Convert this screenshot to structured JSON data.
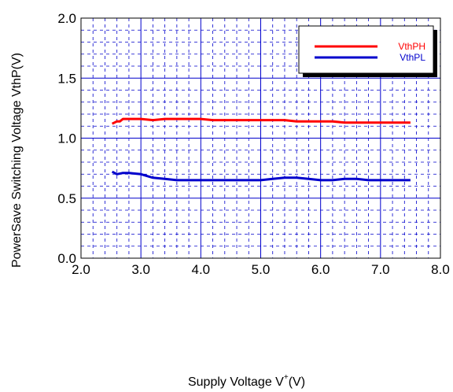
{
  "chart_data": {
    "type": "line",
    "xlabel_prefix": "Supply Voltage  V",
    "xlabel_sup": "+",
    "xlabel_suffix": "(V)",
    "ylabel": "PowerSave Switching Voltage   VthP(V)",
    "xlim": [
      2.0,
      8.0
    ],
    "ylim": [
      0.0,
      2.0
    ],
    "x_ticks": [
      "2.0",
      "3.0",
      "4.0",
      "5.0",
      "6.0",
      "7.0",
      "8.0"
    ],
    "y_ticks": [
      "0.0",
      "0.5",
      "1.0",
      "1.5",
      "2.0"
    ],
    "x_tick_values": [
      2.0,
      3.0,
      4.0,
      5.0,
      6.0,
      7.0,
      8.0
    ],
    "y_tick_values": [
      0.0,
      0.5,
      1.0,
      1.5,
      2.0
    ],
    "x_minor_step": 0.2,
    "y_minor_step": 0.1,
    "grid": true,
    "legend_position": "top-right",
    "series": [
      {
        "name": "VthPH",
        "color": "#ff0000",
        "x": [
          2.52,
          2.56,
          2.6,
          2.65,
          2.7,
          2.8,
          3.0,
          3.2,
          3.4,
          3.6,
          3.8,
          4.0,
          4.2,
          4.4,
          4.6,
          4.8,
          5.0,
          5.2,
          5.4,
          5.6,
          5.8,
          6.0,
          6.2,
          6.4,
          6.6,
          6.8,
          7.0,
          7.2,
          7.5
        ],
        "y": [
          1.12,
          1.13,
          1.14,
          1.14,
          1.16,
          1.16,
          1.16,
          1.15,
          1.16,
          1.16,
          1.16,
          1.16,
          1.15,
          1.15,
          1.15,
          1.15,
          1.15,
          1.15,
          1.15,
          1.14,
          1.14,
          1.14,
          1.14,
          1.13,
          1.13,
          1.13,
          1.13,
          1.13,
          1.13
        ]
      },
      {
        "name": "VthPL",
        "color": "#0000cc",
        "x": [
          2.52,
          2.56,
          2.6,
          2.7,
          2.8,
          3.0,
          3.2,
          3.4,
          3.6,
          3.8,
          4.0,
          4.2,
          4.4,
          4.6,
          4.8,
          5.0,
          5.2,
          5.4,
          5.6,
          5.8,
          6.0,
          6.2,
          6.4,
          6.6,
          6.8,
          7.0,
          7.2,
          7.5
        ],
        "y": [
          0.72,
          0.71,
          0.7,
          0.71,
          0.71,
          0.7,
          0.67,
          0.66,
          0.65,
          0.65,
          0.65,
          0.65,
          0.65,
          0.65,
          0.65,
          0.65,
          0.66,
          0.67,
          0.67,
          0.66,
          0.65,
          0.65,
          0.66,
          0.66,
          0.65,
          0.65,
          0.65,
          0.65
        ]
      }
    ]
  }
}
